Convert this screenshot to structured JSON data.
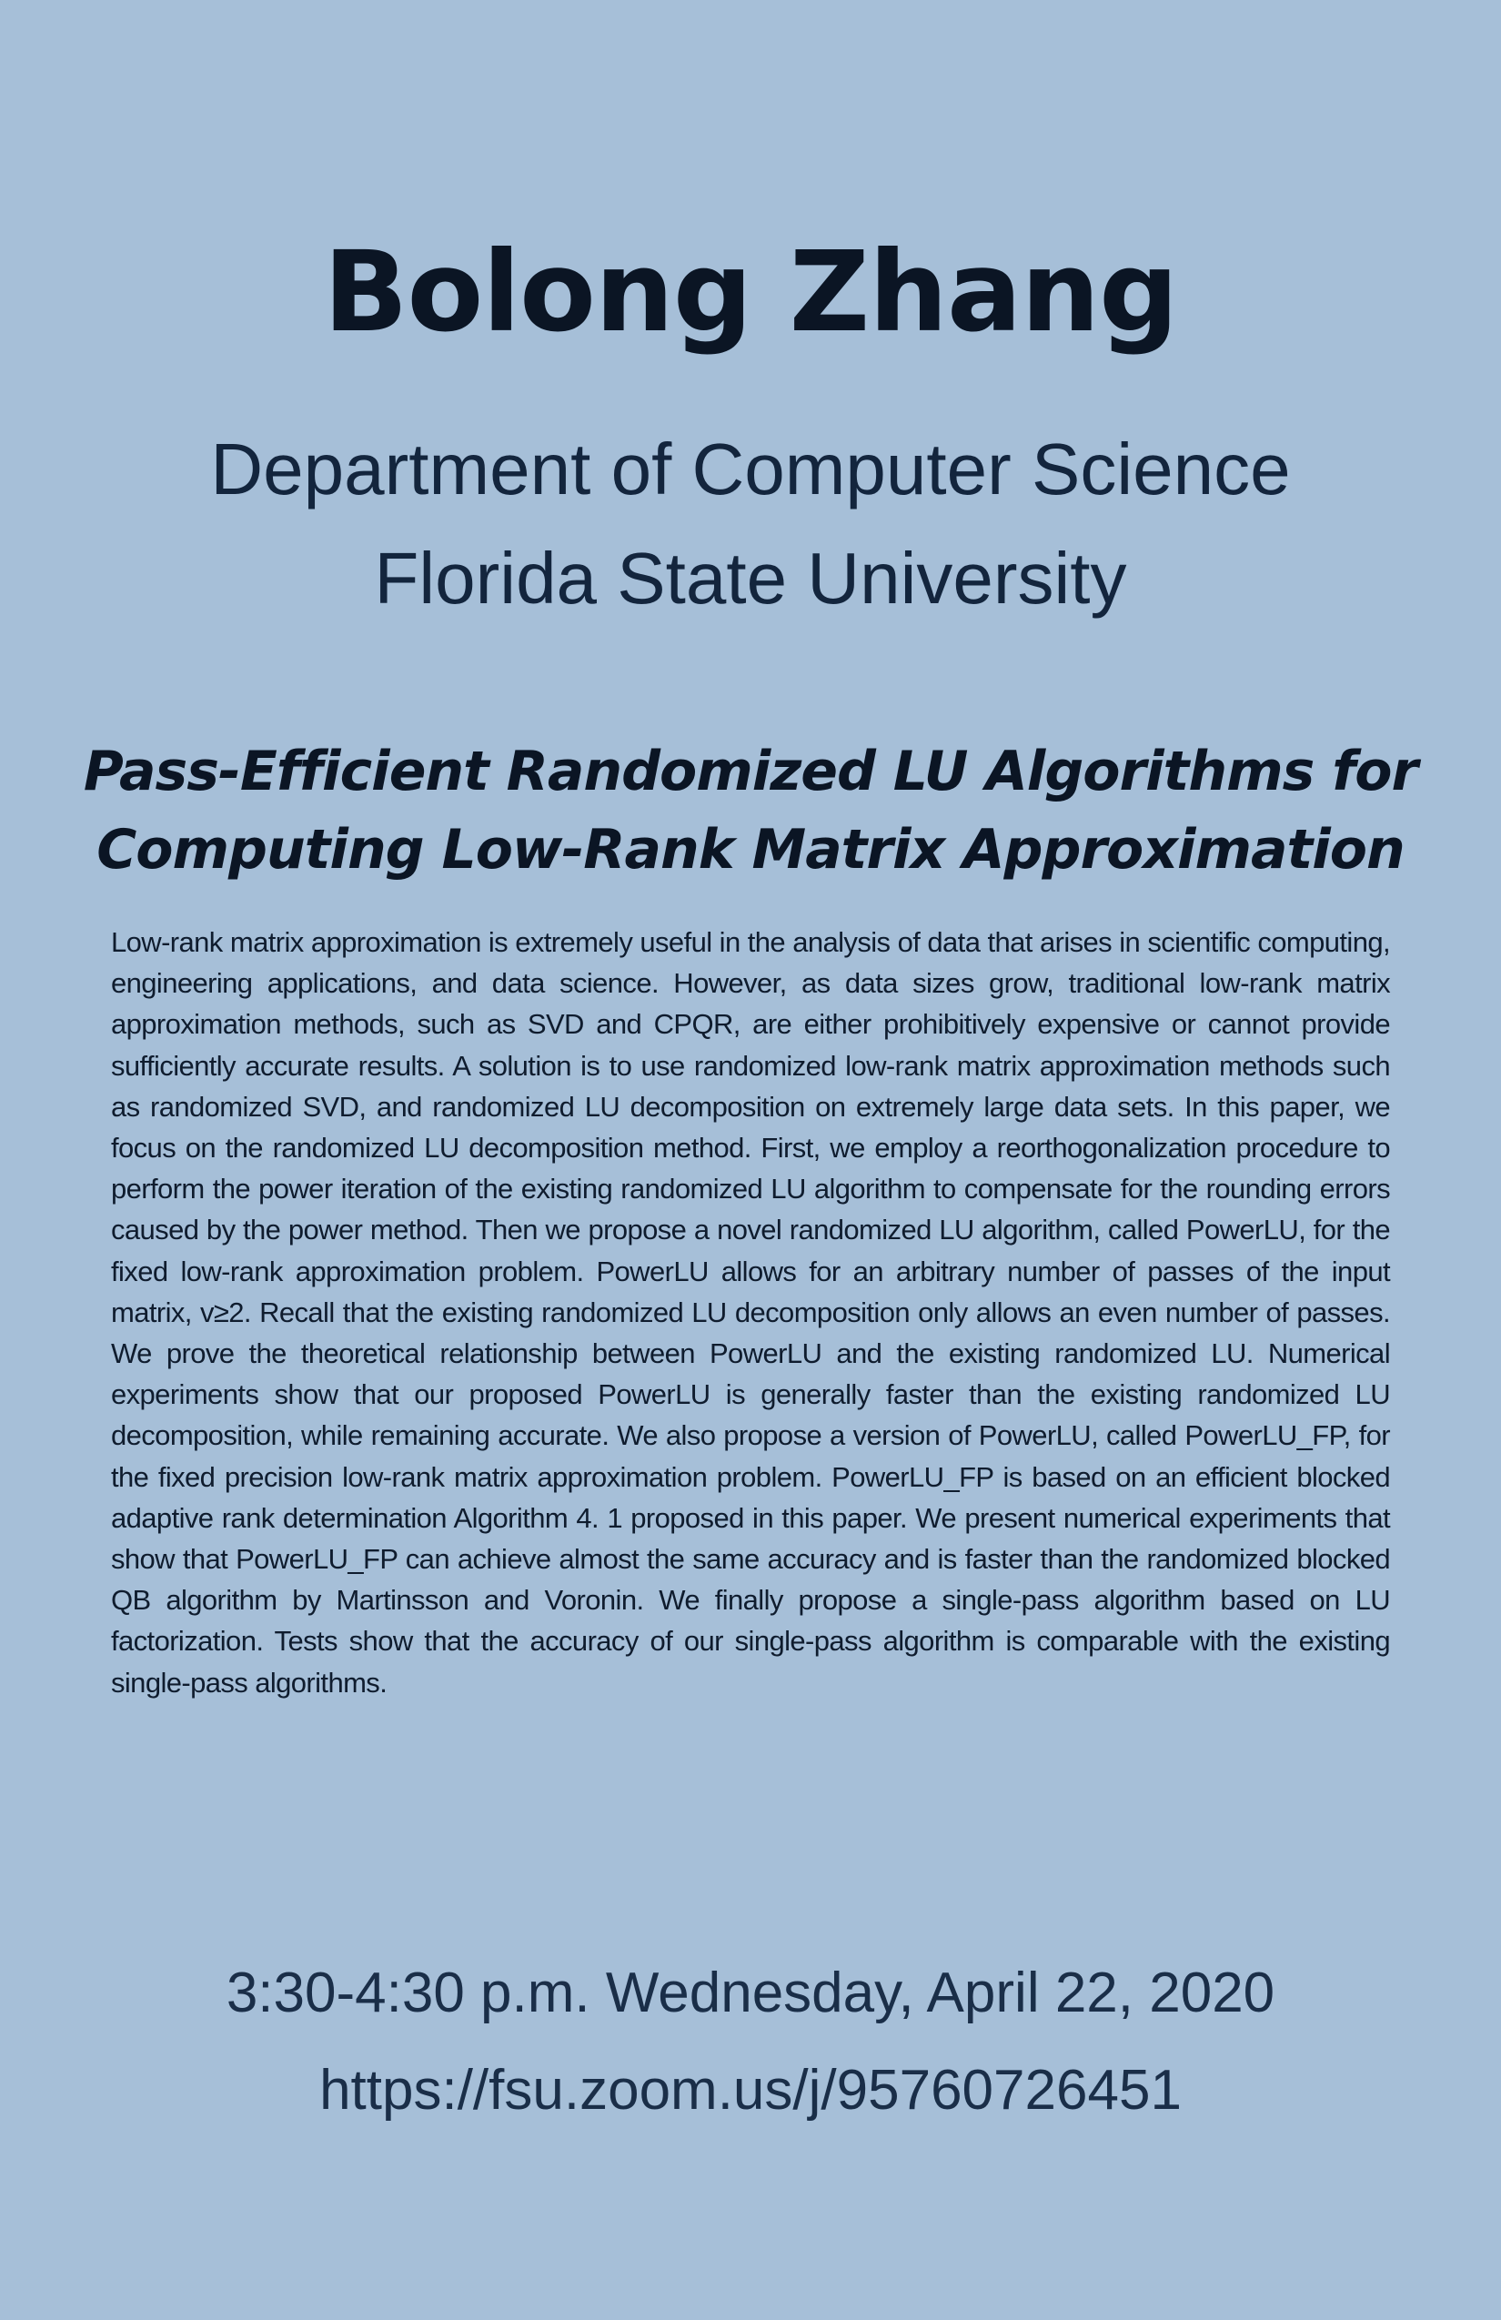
{
  "speaker": "Bolong Zhang",
  "department": "Department of Computer Science",
  "university": "Florida State University",
  "title_line1": "Pass-Efficient Randomized LU Algorithms for",
  "title_line2": "Computing Low-Rank Matrix Approximation",
  "abstract": "Low-rank matrix approximation is extremely useful in the analysis of data that arises in scientific computing, engineering applications, and data science. However, as data sizes grow, traditional low-rank matrix approximation methods, such as SVD and CPQR, are either prohibitively expensive or cannot provide sufficiently accurate results. A solution is to use randomized low-rank matrix approximation methods such as randomized SVD, and randomized LU decomposition on extremely large data sets. In this paper, we focus on the randomized LU decomposition method. First, we employ a reorthogonalization procedure to perform the power iteration of the existing randomized LU algorithm to compensate for the rounding errors caused by the power method. Then we propose a novel randomized LU algorithm, called PowerLU, for the fixed low-rank approximation problem. PowerLU allows for an arbitrary number of passes of the input matrix, v≥2. Recall that the existing randomized LU decomposition only allows an even number of passes. We prove the theoretical relationship between PowerLU and the existing randomized LU. Numerical experiments show that our proposed PowerLU is generally faster than the existing randomized LU decomposition, while remaining accurate. We also propose a version of PowerLU, called PowerLU_FP, for the fixed precision low-rank matrix approximation problem. PowerLU_FP is based on an efficient blocked adaptive rank determination Algorithm 4. 1 proposed in this paper. We present numerical experiments that show that PowerLU_FP can achieve almost the same accuracy and is faster than the randomized blocked QB algorithm by Martinsson and Voronin. We finally propose a single-pass algorithm based on LU factorization. Tests show that the accuracy of our single-pass algorithm is comparable with the existing single-pass algorithms.",
  "datetime": "3:30-4:30 p.m. Wednesday, April 22, 2020",
  "link": "https://fsu.zoom.us/j/95760726451",
  "colors": {
    "background": "#a6bfd8",
    "text": "#0f1c2e"
  }
}
